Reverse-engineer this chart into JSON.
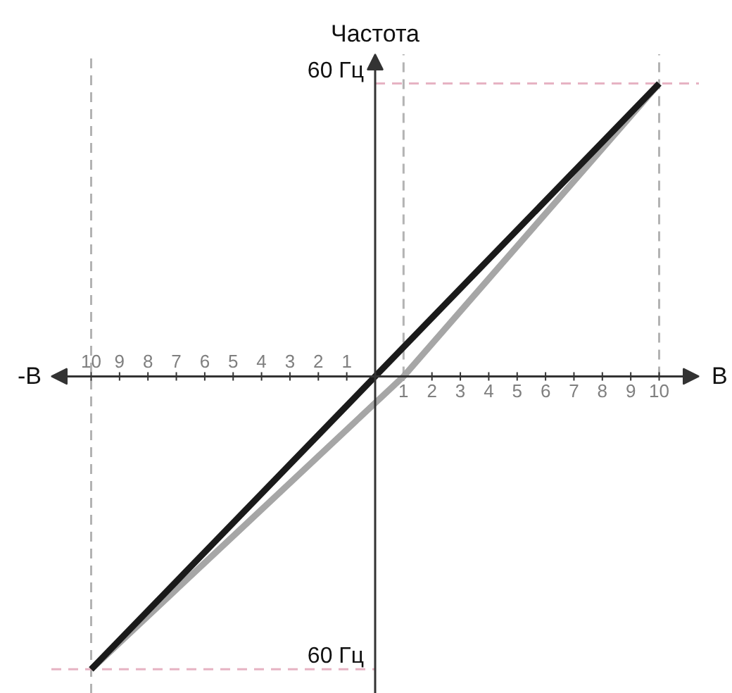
{
  "chart_data": {
    "type": "line",
    "xlabel": "В",
    "ylabel": "Частота",
    "annotations": [
      "-В"
    ],
    "series": [
      {
        "color": "#a6a6a6",
        "x": [
          -10,
          1,
          10
        ],
        "values": [
          -60,
          0,
          60
        ]
      },
      {
        "color": "#1a1a1a",
        "x": [
          -10,
          10
        ],
        "values": [
          -60,
          60
        ]
      }
    ],
    "xlim": [
      -11.4,
      11.4
    ],
    "ylim": [
      -65,
      66
    ],
    "xticks": [
      {
        "value": -10,
        "label": "10"
      },
      {
        "value": -9,
        "label": "9"
      },
      {
        "value": -8,
        "label": "8"
      },
      {
        "value": -7,
        "label": "7"
      },
      {
        "value": -6,
        "label": "6"
      },
      {
        "value": -5,
        "label": "5"
      },
      {
        "value": -4,
        "label": "4"
      },
      {
        "value": -3,
        "label": "3"
      },
      {
        "value": -2,
        "label": "2"
      },
      {
        "value": -1,
        "label": "1"
      }
    ],
    "x2lim": [
      -11.4,
      11.4
    ],
    "x2ticks": [
      1,
      2,
      3,
      4,
      5,
      6,
      7,
      8,
      9,
      10
    ],
    "yticks": [
      {
        "value": -60,
        "label": "60 Гц"
      },
      {
        "value": 60,
        "label": "60 Гц"
      }
    ],
    "ref_lines": [
      {
        "axis": "x",
        "value": -10,
        "color": "#b3b3b3",
        "line_style": "dashed"
      },
      {
        "axis": "x",
        "value": 1,
        "color": "#b3b3b3",
        "line_style": "dashed"
      },
      {
        "axis": "x",
        "value": 10,
        "color": "#b3b3b3",
        "line_style": "dashed"
      },
      {
        "axis": "y",
        "value": 60,
        "color": "#e6b3c3",
        "line_style": "dashed"
      },
      {
        "axis": "y",
        "value": -60,
        "color": "#e6b3c3",
        "line_style": "dashed"
      }
    ]
  }
}
